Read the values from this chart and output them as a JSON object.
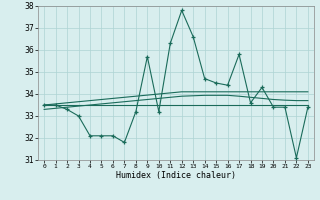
{
  "xlabel": "Humidex (Indice chaleur)",
  "x": [
    0,
    1,
    2,
    3,
    4,
    5,
    6,
    7,
    8,
    9,
    10,
    11,
    12,
    13,
    14,
    15,
    16,
    17,
    18,
    19,
    20,
    21,
    22,
    23
  ],
  "main_y": [
    33.5,
    33.5,
    33.3,
    33.0,
    32.1,
    32.1,
    32.1,
    31.8,
    33.2,
    35.7,
    33.2,
    36.3,
    37.8,
    36.6,
    34.7,
    34.5,
    34.4,
    35.8,
    33.6,
    34.3,
    33.4,
    33.4,
    31.1,
    33.4
  ],
  "line2_y": [
    33.5,
    33.55,
    33.6,
    33.65,
    33.7,
    33.75,
    33.8,
    33.85,
    33.9,
    33.95,
    34.0,
    34.05,
    34.1,
    34.1,
    34.1,
    34.1,
    34.1,
    34.1,
    34.1,
    34.1,
    34.1,
    34.1,
    34.1,
    34.1
  ],
  "line3_y": [
    33.5,
    33.5,
    33.5,
    33.5,
    33.5,
    33.5,
    33.5,
    33.5,
    33.5,
    33.5,
    33.5,
    33.5,
    33.5,
    33.5,
    33.5,
    33.5,
    33.5,
    33.5,
    33.5,
    33.5,
    33.5,
    33.5,
    33.5,
    33.5
  ],
  "line4_y": [
    33.3,
    33.35,
    33.4,
    33.45,
    33.5,
    33.55,
    33.6,
    33.65,
    33.7,
    33.75,
    33.8,
    33.85,
    33.9,
    33.92,
    33.94,
    33.94,
    33.94,
    33.9,
    33.85,
    33.8,
    33.75,
    33.72,
    33.7,
    33.7
  ],
  "line_color": "#1a6b5a",
  "bg_color": "#d8eeee",
  "ylim": [
    31,
    38
  ],
  "yticks": [
    31,
    32,
    33,
    34,
    35,
    36,
    37,
    38
  ],
  "xticks": [
    0,
    1,
    2,
    3,
    4,
    5,
    6,
    7,
    8,
    9,
    10,
    11,
    12,
    13,
    14,
    15,
    16,
    17,
    18,
    19,
    20,
    21,
    22,
    23
  ],
  "grid_color": "#aed4d4"
}
